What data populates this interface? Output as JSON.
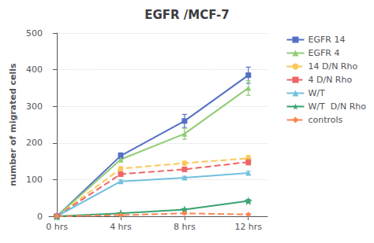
{
  "chart_data": {
    "type": "line",
    "title": "EGFR /MCF-7",
    "y_label": "number of migrated cells",
    "x": [
      0,
      4,
      8,
      12
    ],
    "xlim": [
      -0.5,
      13.2
    ],
    "xticks": [
      {
        "value": 0,
        "label": "0 hrs"
      },
      {
        "value": 4,
        "label": "4 hrs"
      },
      {
        "value": 8,
        "label": "8 hrs"
      },
      {
        "value": 12,
        "label": "12 hrs"
      }
    ],
    "ylim": [
      0,
      500
    ],
    "yticks": [
      0,
      100,
      200,
      300,
      400,
      500
    ],
    "grid": true,
    "legend": "right",
    "series": [
      {
        "name": "EGFR 14",
        "values": [
          0,
          165,
          260,
          385
        ],
        "yerr": [
          0,
          8,
          18,
          22
        ],
        "marker": "square",
        "line_style": "solid"
      },
      {
        "name": "EGFR 4",
        "values": [
          0,
          155,
          225,
          350
        ],
        "yerr": [
          0,
          7,
          15,
          20
        ],
        "marker": "triangle",
        "line_style": "solid"
      },
      {
        "name": "14 D/N Rho",
        "values": [
          0,
          130,
          145,
          158
        ],
        "yerr": [
          0,
          5,
          5,
          8
        ],
        "marker": "circle",
        "line_style": "dashed"
      },
      {
        "name": "4 D/N Rho",
        "values": [
          0,
          115,
          128,
          148
        ],
        "yerr": [
          0,
          5,
          5,
          8
        ],
        "marker": "square",
        "line_style": "dashed"
      },
      {
        "name": "W/T",
        "values": [
          0,
          95,
          105,
          118
        ],
        "yerr": [
          0,
          4,
          4,
          5
        ],
        "marker": "triangle",
        "line_style": "solid"
      },
      {
        "name": "W/T  D/N Rho",
        "values": [
          0,
          8,
          18,
          42
        ],
        "yerr": [
          0,
          2,
          3,
          4
        ],
        "marker": "star",
        "line_style": "solid"
      },
      {
        "name": "controls",
        "values": [
          0,
          3,
          8,
          5
        ],
        "yerr": [
          0,
          1,
          2,
          2
        ],
        "marker": "diamond",
        "line_style": "dashed"
      }
    ]
  }
}
